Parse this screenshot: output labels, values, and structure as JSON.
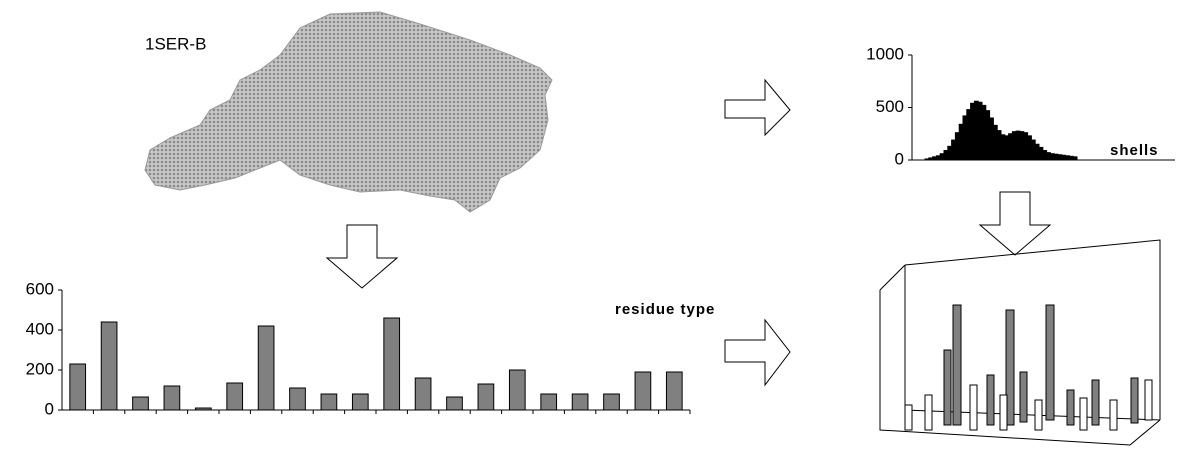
{
  "label": "1SER-B",
  "chart_data": [
    {
      "type": "bar",
      "x_label": "residue type",
      "categories": [
        null,
        null,
        null,
        null,
        null,
        null,
        null,
        null,
        null,
        null,
        null,
        null,
        null,
        null,
        null,
        null,
        null,
        null,
        null,
        null
      ],
      "values": [
        230,
        440,
        65,
        120,
        10,
        135,
        420,
        110,
        80,
        80,
        460,
        160,
        65,
        130,
        200,
        80,
        80,
        80,
        190,
        190
      ],
      "color": "#808080",
      "ylim": [
        0,
        600
      ],
      "yticks": [
        0,
        200,
        400,
        600
      ]
    },
    {
      "type": "bar",
      "x_label": "shells",
      "categories": [
        null,
        null,
        null,
        null,
        null,
        null,
        null,
        null,
        null,
        null,
        null,
        null,
        null,
        null,
        null,
        null,
        null,
        null,
        null,
        null,
        null,
        null,
        null,
        null,
        null,
        null,
        null,
        null,
        null,
        null,
        null,
        null,
        null,
        null,
        null,
        null,
        null,
        null,
        null,
        null
      ],
      "values": [
        10,
        20,
        30,
        40,
        60,
        90,
        130,
        190,
        260,
        340,
        420,
        480,
        540,
        560,
        550,
        520,
        470,
        400,
        330,
        280,
        240,
        230,
        250,
        270,
        275,
        270,
        260,
        230,
        190,
        150,
        120,
        90,
        70,
        60,
        55,
        50,
        45,
        40,
        35,
        30
      ],
      "color": "#000000",
      "ylim": [
        0,
        1000
      ],
      "yticks": [
        0,
        500,
        1000
      ]
    }
  ]
}
